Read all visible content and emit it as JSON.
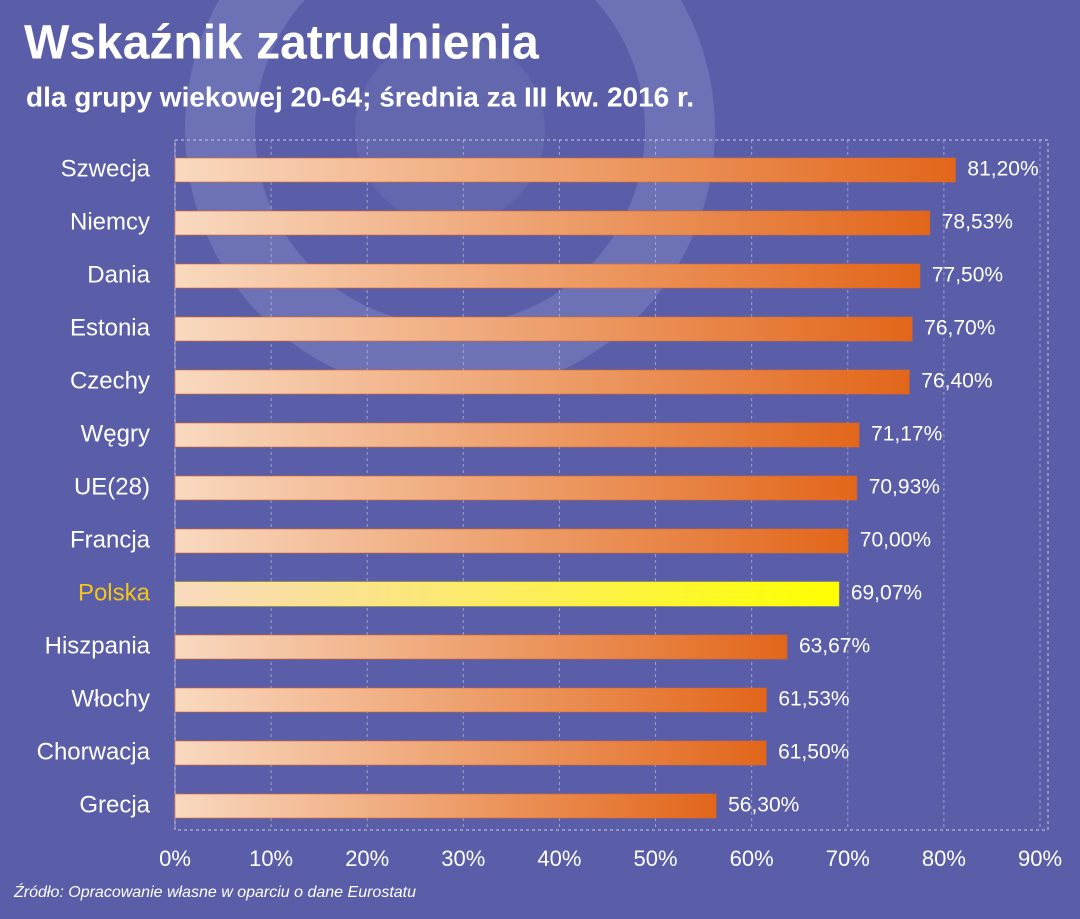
{
  "chart_data": {
    "type": "bar",
    "orientation": "horizontal",
    "title": "Wskaźnik zatrudnienia",
    "subtitle": "dla grupy wiekowej 20-64; średnia za III kw. 2016 r.",
    "source": "Źródło: Opracowanie własne w oparciu o dane Eurostatu",
    "categories": [
      "Szwecja",
      "Niemcy",
      "Dania",
      "Estonia",
      "Czechy",
      "Węgry",
      "UE(28)",
      "Francja",
      "Polska",
      "Hiszpania",
      "Włochy",
      "Chorwacja",
      "Grecja"
    ],
    "values": [
      81.2,
      78.53,
      77.5,
      76.7,
      76.4,
      71.17,
      70.93,
      70.0,
      69.07,
      63.67,
      61.53,
      61.5,
      56.3
    ],
    "value_labels": [
      "81,20%",
      "78,53%",
      "77,50%",
      "76,70%",
      "76,40%",
      "71,17%",
      "70,93%",
      "70,00%",
      "69,07%",
      "63,67%",
      "61,53%",
      "61,50%",
      "56,30%"
    ],
    "colors": [
      "#e2661a",
      "#e2661a",
      "#e2661a",
      "#e2661a",
      "#e2661a",
      "#e2661a",
      "#e2661a",
      "#e2661a",
      "#ffff00",
      "#e2661a",
      "#e2661a",
      "#e2661a",
      "#e2661a"
    ],
    "category_label_colors": [
      "#ffffff",
      "#ffffff",
      "#ffffff",
      "#ffffff",
      "#ffffff",
      "#ffffff",
      "#ffffff",
      "#ffffff",
      "#f5c518",
      "#ffffff",
      "#ffffff",
      "#ffffff",
      "#ffffff"
    ],
    "xlim": [
      0,
      90
    ],
    "xticks": [
      {
        "value": 0,
        "label": "0%"
      },
      {
        "value": 10,
        "label": "10%"
      },
      {
        "value": 20,
        "label": "20%"
      },
      {
        "value": 30,
        "label": "30%"
      },
      {
        "value": 40,
        "label": "40%"
      },
      {
        "value": 50,
        "label": "50%"
      },
      {
        "value": 60,
        "label": "60%"
      },
      {
        "value": 70,
        "label": "70%"
      },
      {
        "value": 80,
        "label": "80%"
      },
      {
        "value": 90,
        "label": "90%"
      }
    ],
    "grid": true
  }
}
